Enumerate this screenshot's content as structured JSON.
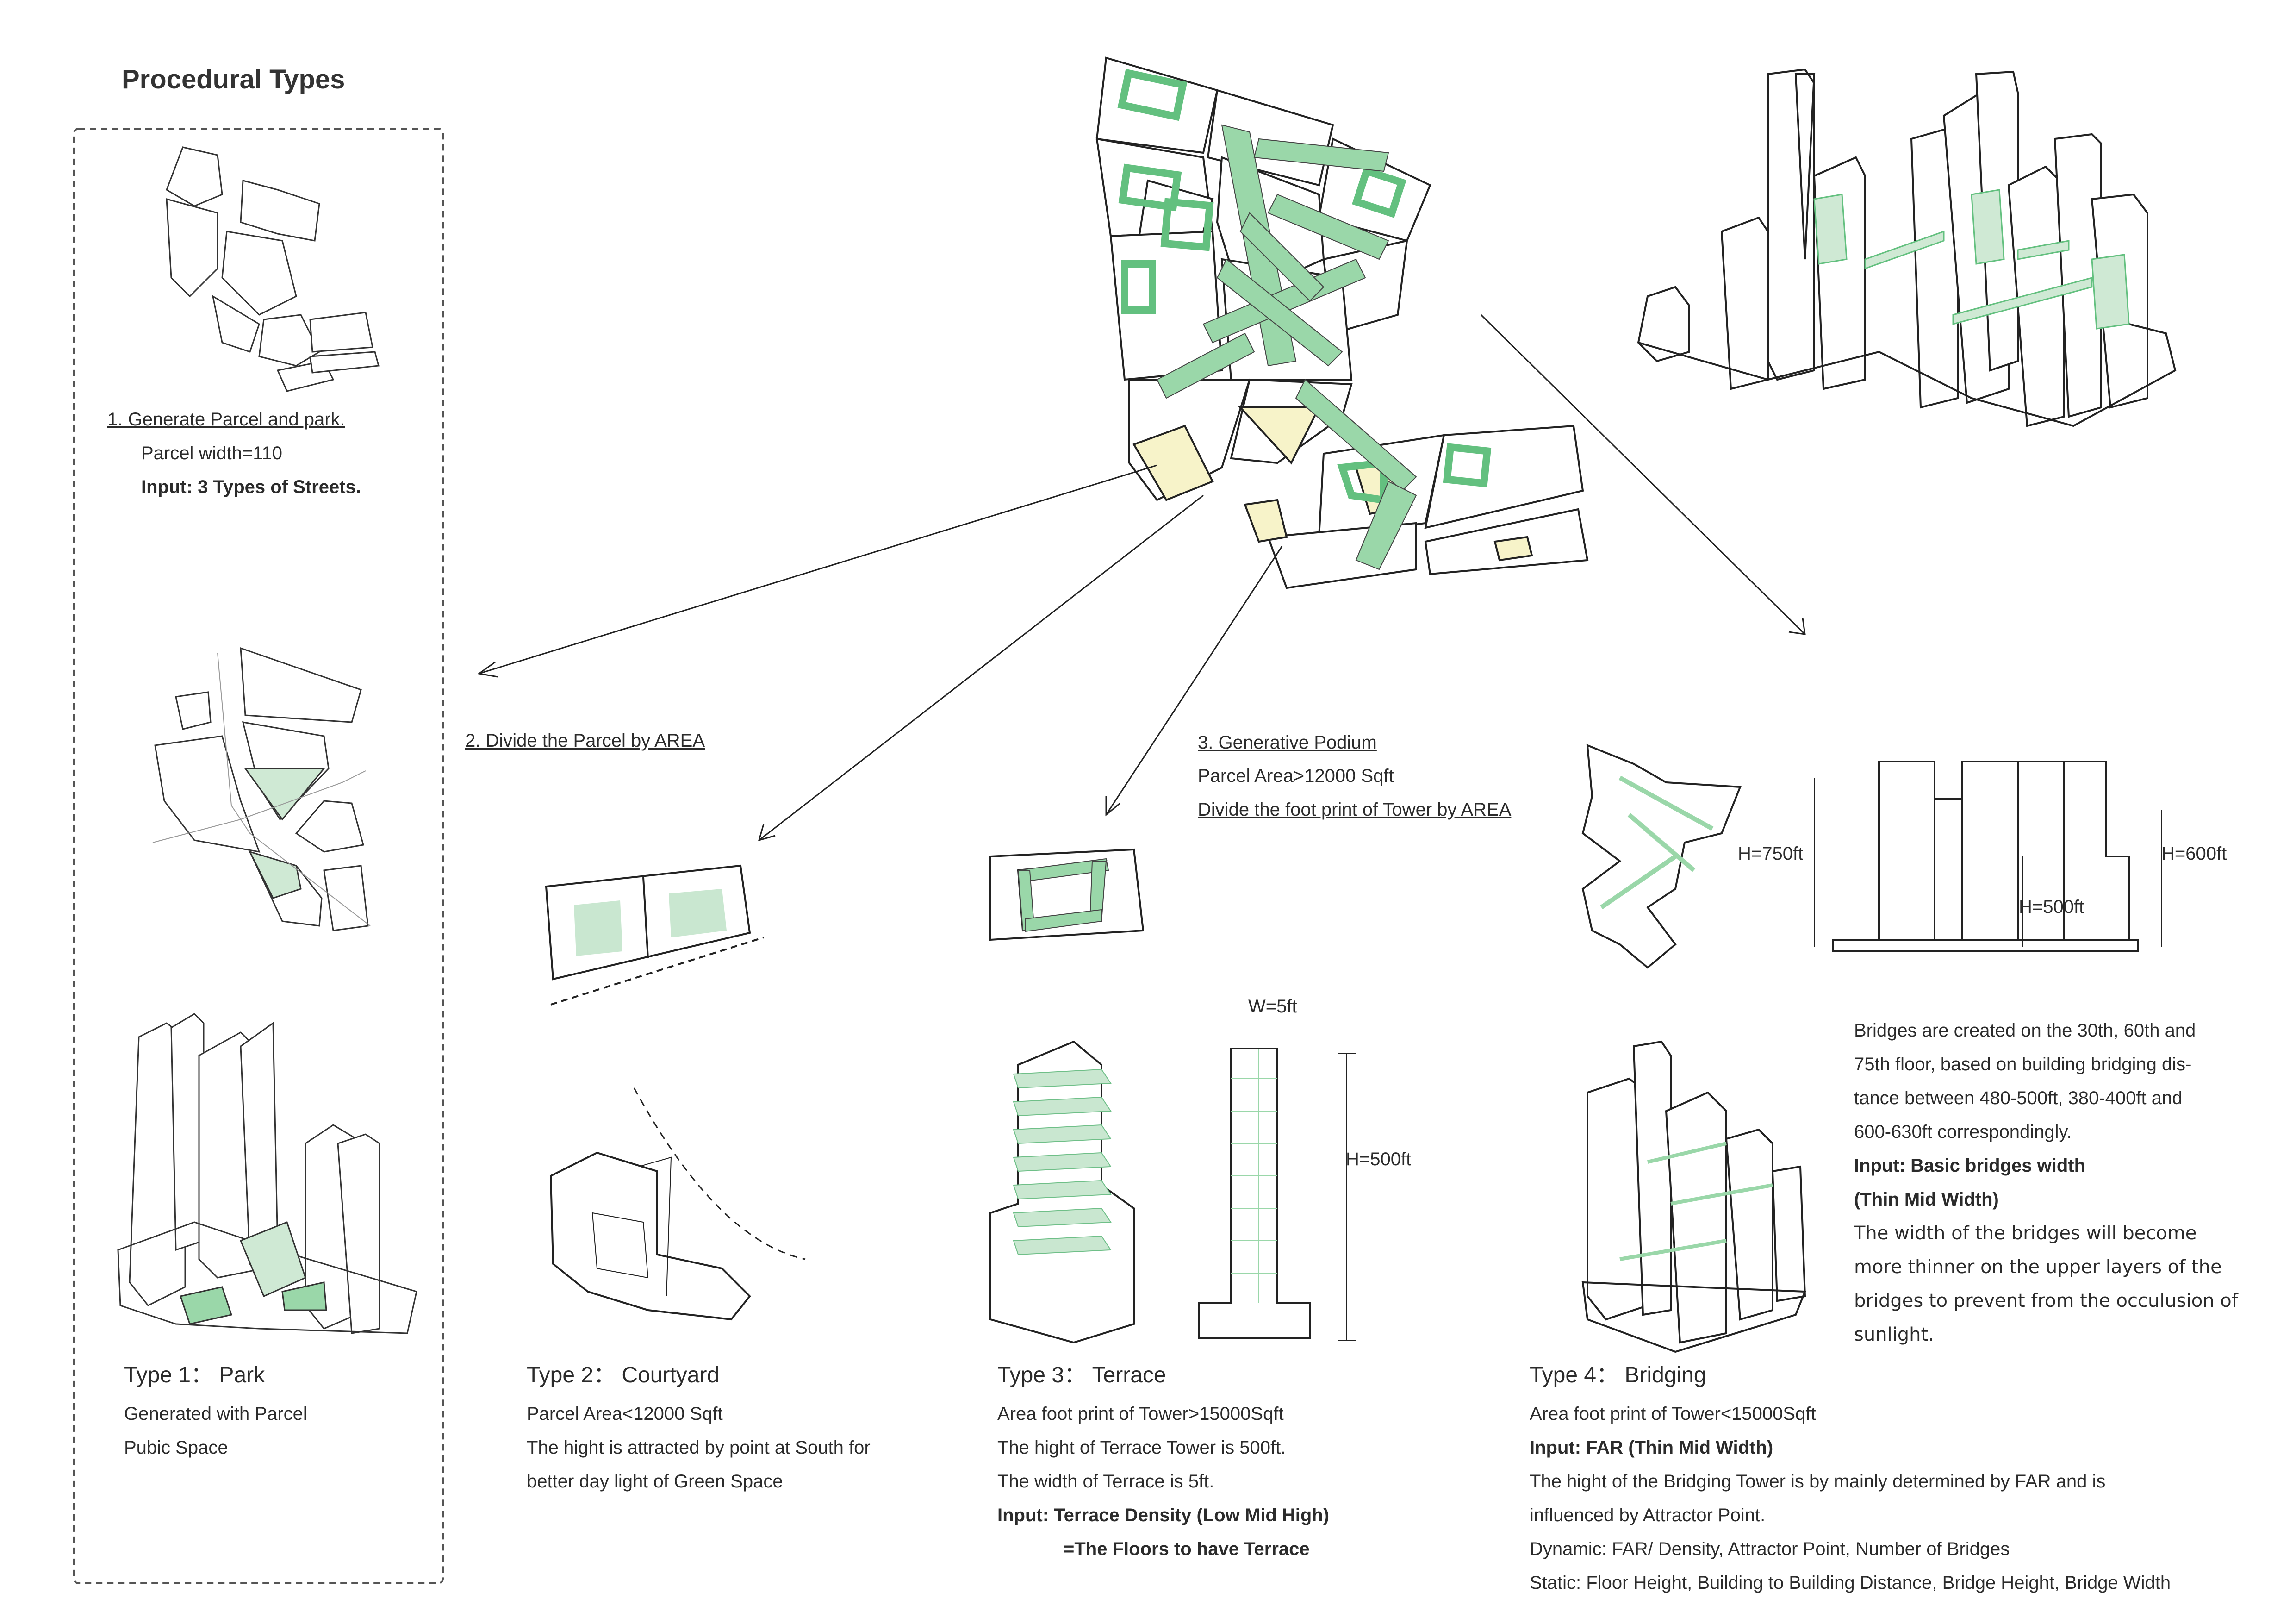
{
  "title": "Procedural Types",
  "step1": {
    "heading": "1. Generate Parcel and park.",
    "line1": "Parcel width=110",
    "input": "Input: 3 Types of Streets."
  },
  "step2": {
    "heading": "2. Divide the Parcel by AREA"
  },
  "step3": {
    "heading": "3. Generative Podium",
    "line1": "Parcel Area>12000 Sqft",
    "line2": "Divide the foot print of Tower by AREA"
  },
  "type1": {
    "title": "Type  1： Park",
    "line1": "Generated with Parcel",
    "line2": "Pubic Space"
  },
  "type2": {
    "title": "Type 2： Courtyard",
    "line1": "Parcel Area<12000 Sqft",
    "line2": "The hight is attracted by point at South for",
    "line3": "better day light of Green Space"
  },
  "type3": {
    "title": "Type  3： Terrace",
    "line1": "Area foot print of Tower>15000Sqft",
    "line2": "The hight of Terrace Tower is 500ft.",
    "line3": "The width of Terrace is 5ft.",
    "input1": "Input:  Terrace Density (Low Mid High)",
    "input2": "=The Floors to have Terrace"
  },
  "type4": {
    "title": "Type 4： Bridging",
    "line1": "Area foot print of Tower<15000Sqft",
    "input": "Input: FAR (Thin Mid Width)",
    "line2": "The hight of the Bridging Tower is  by mainly determined by FAR and is",
    "line3": "influenced by Attractor Point.",
    "line4": "Dynamic: FAR/ Density, Attractor Point, Number of Bridges",
    "line5": "Static: Floor Height, Building to Building Distance, Bridge Height, Bridge Width"
  },
  "bridges_note": {
    "line1": "Bridges are created on the 30th, 60th and",
    "line2": "75th floor, based on building bridging dis-",
    "line3": "tance between 480-500ft, 380-400ft and",
    "line4": "600-630ft correspondingly.",
    "input1": "Input: Basic bridges width",
    "input2": "(Thin Mid Width)",
    "line5": "The width  of the bridges will become",
    "line6": "more thinner on the upper layers of the",
    "line7": "bridges to prevent from the occulusion of",
    "line8": "sunlight."
  },
  "dims": {
    "w5": "W=5ft",
    "h500_terrace": "H=500ft",
    "h750": "H=750ft",
    "h600": "H=600ft",
    "h500": "H=500ft"
  },
  "colors": {
    "green": "#9ad7a9",
    "green_dark": "#63c07f",
    "yellow": "#f7f3c9",
    "line": "#222222",
    "dash": "#555555"
  }
}
